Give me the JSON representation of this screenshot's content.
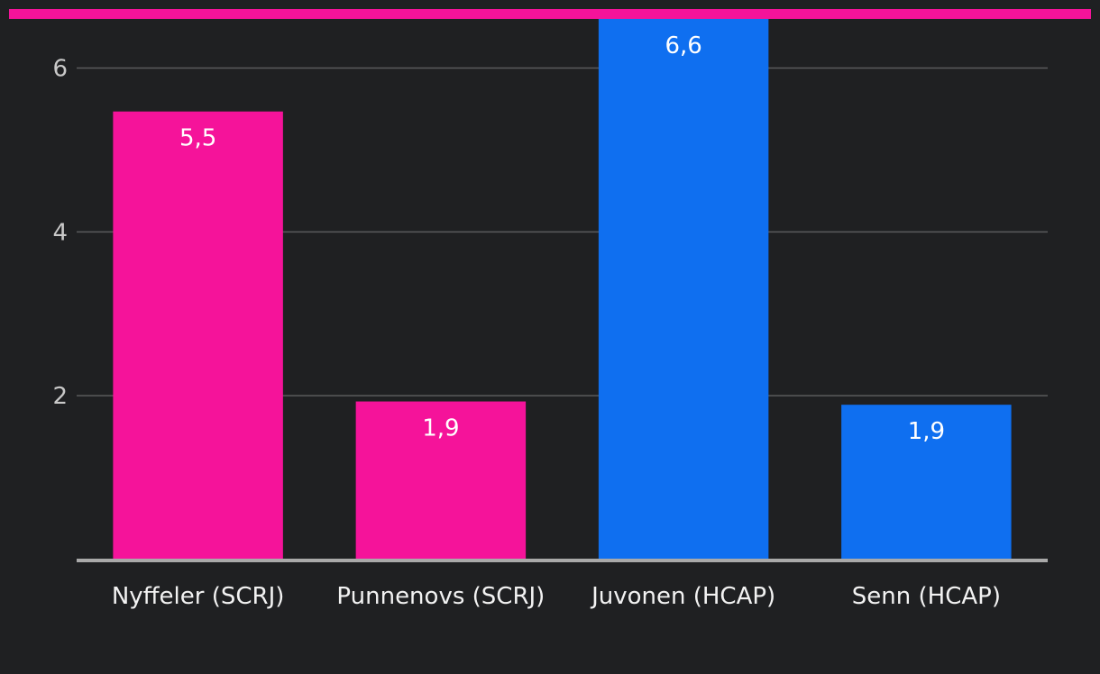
{
  "colors": {
    "background": "#1f2022",
    "stripe": "#f5139a",
    "grid": "#5a5b5d",
    "axis": "#a9a9a9",
    "scrj": "#f5139a",
    "hcap": "#0f6ff0"
  },
  "chart_data": {
    "type": "bar",
    "title": "",
    "xlabel": "",
    "ylabel": "",
    "ylim": [
      0,
      6.6
    ],
    "yticks": [
      2,
      4,
      6
    ],
    "ytick_labels": [
      "2",
      "4",
      "6"
    ],
    "grid": true,
    "categories": [
      "Nyffeler (SCRJ)",
      "Punnenovs (SCRJ)",
      "Juvonen (HCAP)",
      "Senn (HCAP)"
    ],
    "values": [
      5.47,
      1.93,
      6.6,
      1.89
    ],
    "data_labels": [
      "5,5",
      "1,9",
      "6,6",
      "1,9"
    ],
    "bar_colors": [
      "#f5139a",
      "#f5139a",
      "#0f6ff0",
      "#0f6ff0"
    ]
  }
}
